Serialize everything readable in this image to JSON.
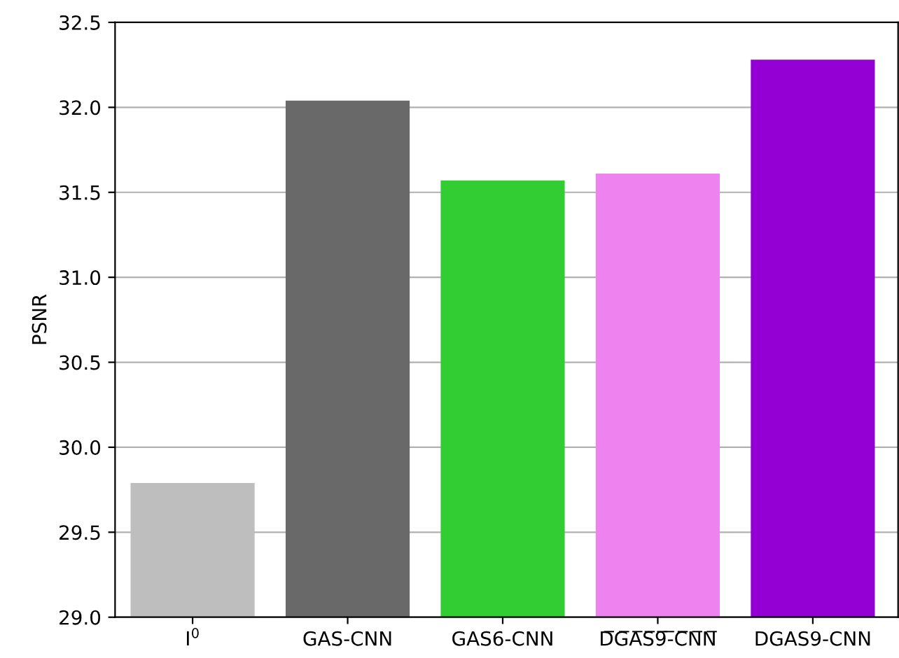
{
  "chart_data": {
    "type": "bar",
    "ylabel": "PSNR",
    "categories": [
      "I$^{0}$",
      "GAS-CNN",
      "GAS6-CNN",
      "D̅G̅A̅S̅9̅-̅C̅N̅N̅",
      "DGAS9-CNN"
    ],
    "values": [
      29.79,
      32.04,
      31.57,
      31.61,
      32.28
    ],
    "colors": [
      "#bebebe",
      "#696969",
      "#32cd32",
      "#ee82ee",
      "#9400d3"
    ],
    "ylim": [
      29.0,
      32.5
    ],
    "yticks": [
      {
        "value": 29.0,
        "label": "29.0"
      },
      {
        "value": 29.5,
        "label": "29.5"
      },
      {
        "value": 30.0,
        "label": "30.0"
      },
      {
        "value": 30.5,
        "label": "30.5"
      },
      {
        "value": 31.0,
        "label": "31.0"
      },
      {
        "value": 31.5,
        "label": "31.5"
      },
      {
        "value": 32.0,
        "label": "32.0"
      },
      {
        "value": 32.5,
        "label": "32.5"
      }
    ],
    "grid": "y"
  }
}
